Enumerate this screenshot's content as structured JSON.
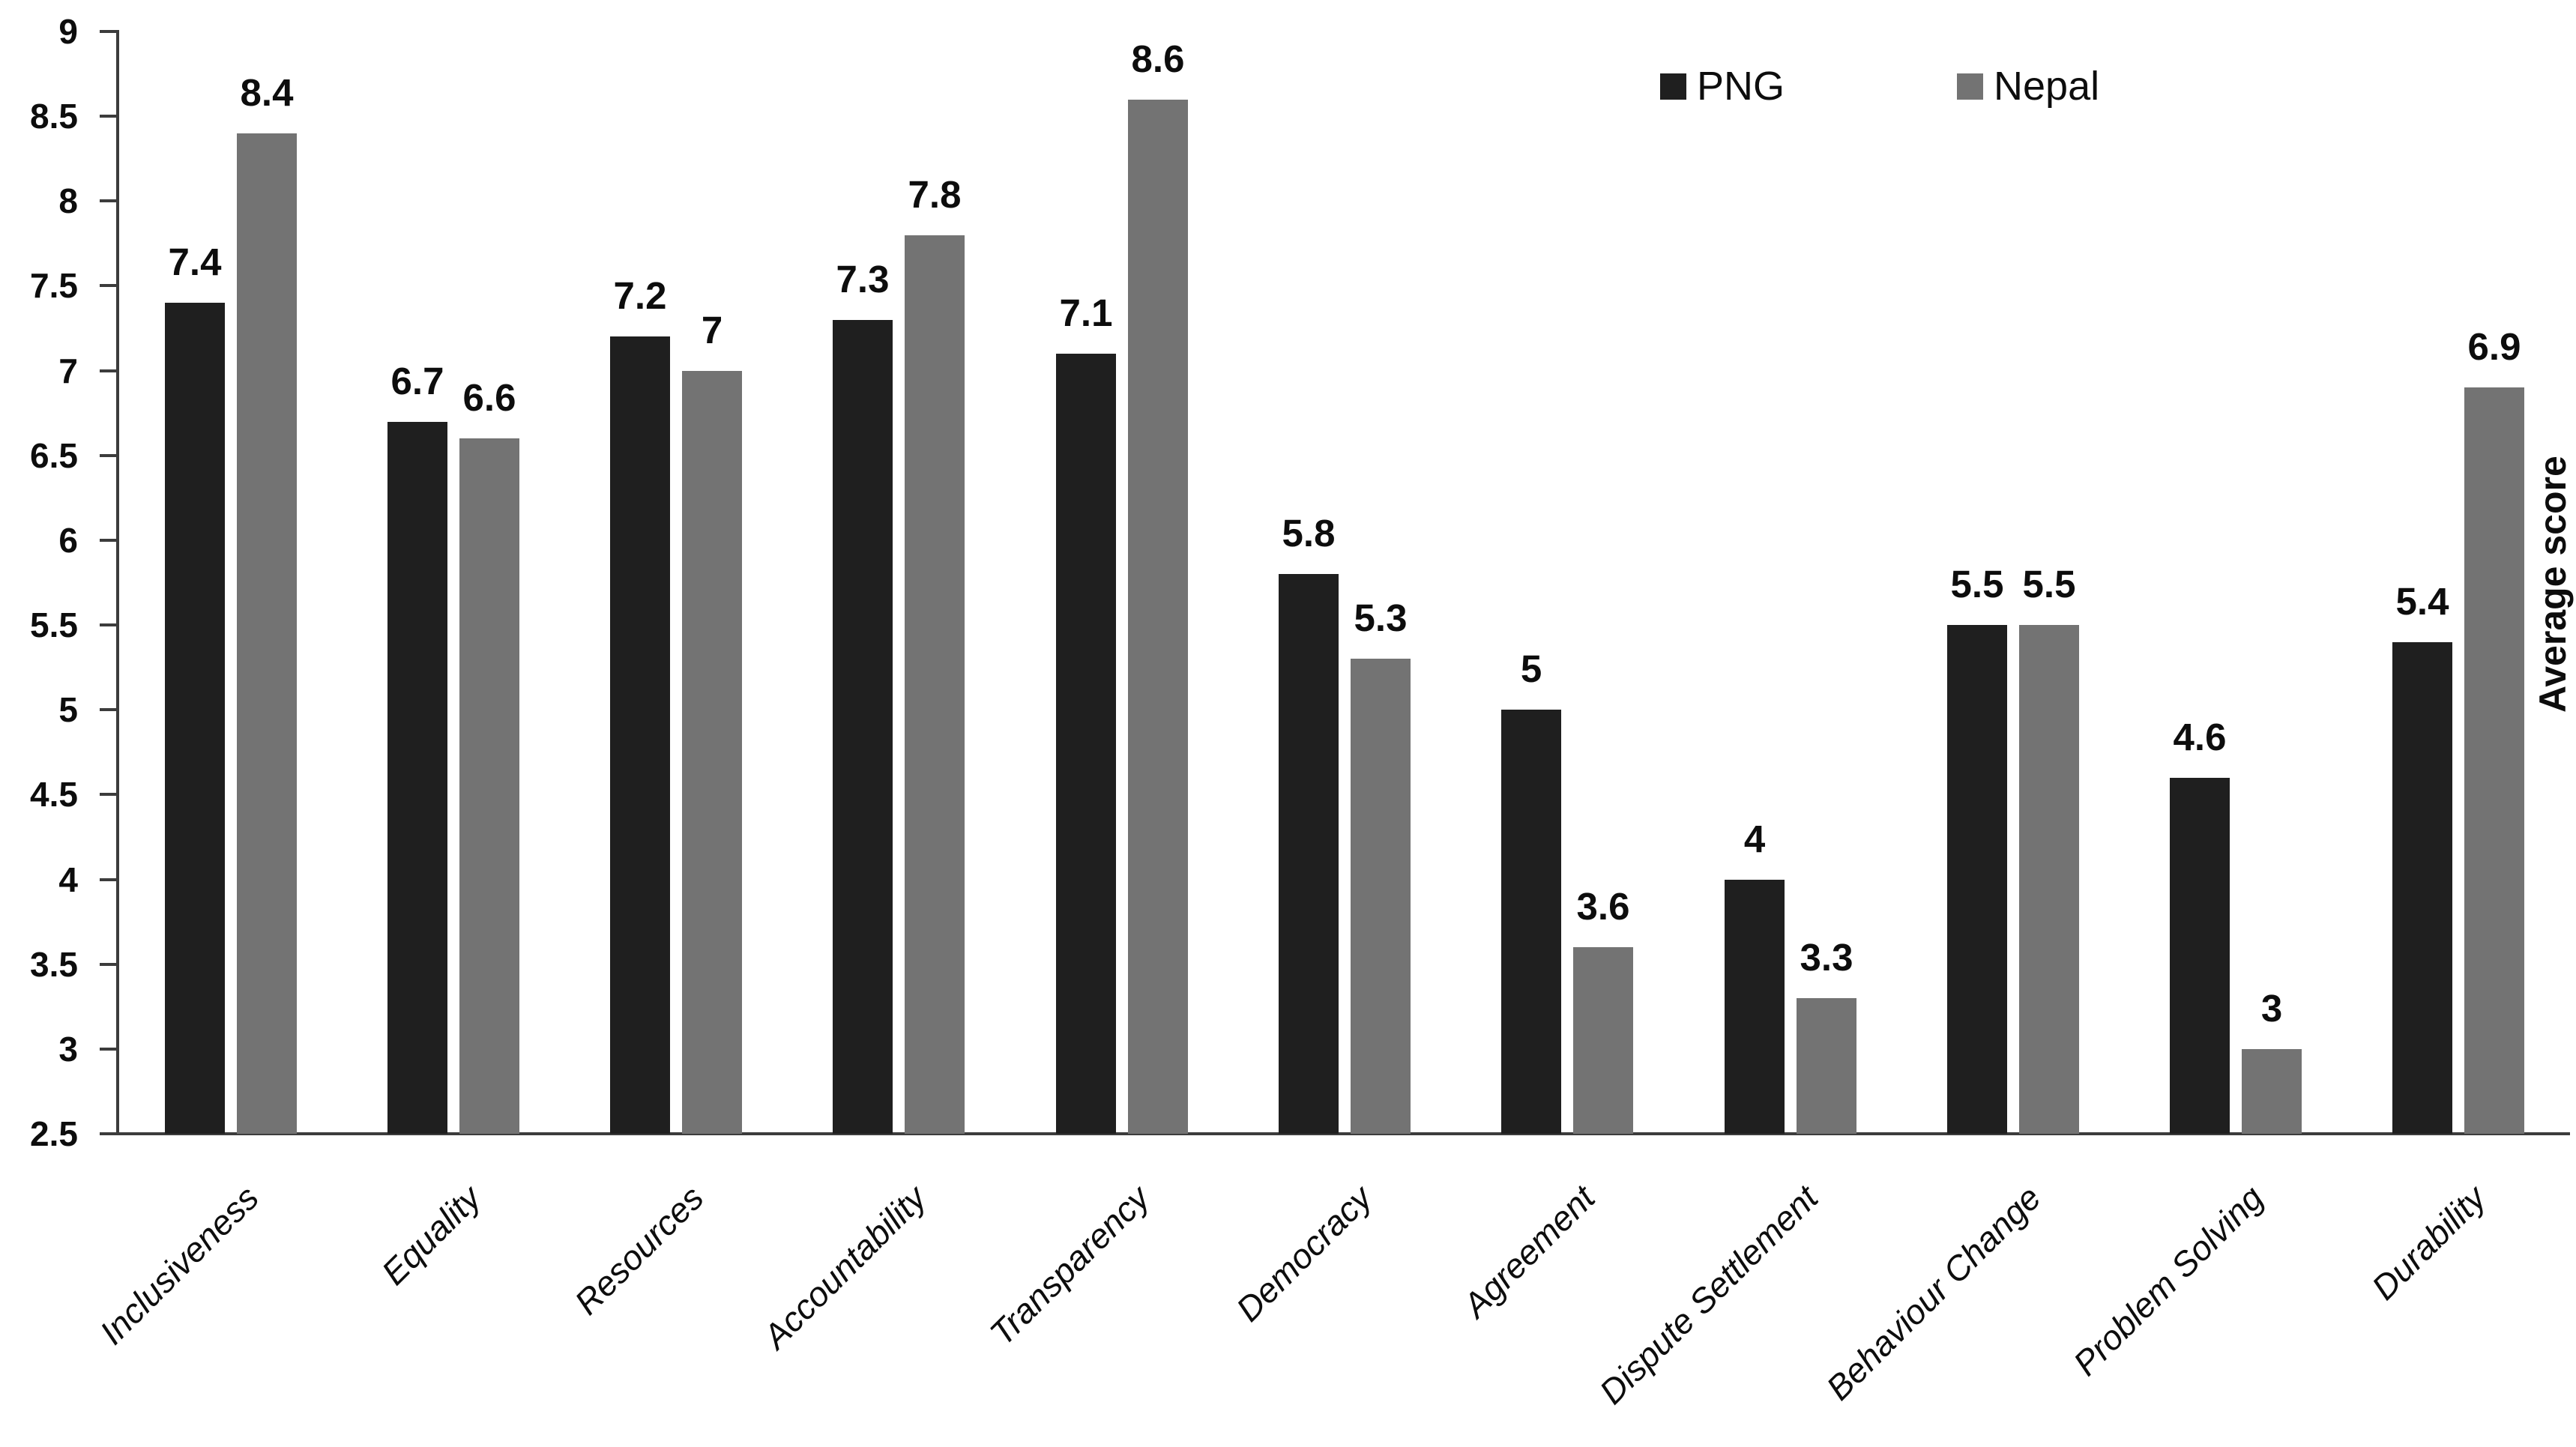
{
  "chart_data": {
    "type": "bar",
    "title": "",
    "xlabel": "",
    "ylabel": "Average score",
    "ylim": [
      2.5,
      9
    ],
    "ytick_step": 0.5,
    "grid": false,
    "legend_position": "top-right",
    "categories": [
      "Inclusiveness",
      "Equality",
      "Resources",
      "Accountability",
      "Transparency",
      "Democracy",
      "Agreement",
      "Dispute Settlement",
      "Behaviour Change",
      "Problem Solving",
      "Durability"
    ],
    "series": [
      {
        "name": "PNG",
        "color": "#1f1f1f",
        "values": [
          7.4,
          6.7,
          7.2,
          7.3,
          7.1,
          5.8,
          5,
          4,
          5.5,
          4.6,
          5.4
        ]
      },
      {
        "name": "Nepal",
        "color": "#737373",
        "values": [
          8.4,
          6.6,
          7,
          7.8,
          8.6,
          5.3,
          3.6,
          3.3,
          5.5,
          3,
          6.9
        ]
      }
    ],
    "axis_color": "#3c3c3c",
    "label_color": "#0d0d0d"
  }
}
